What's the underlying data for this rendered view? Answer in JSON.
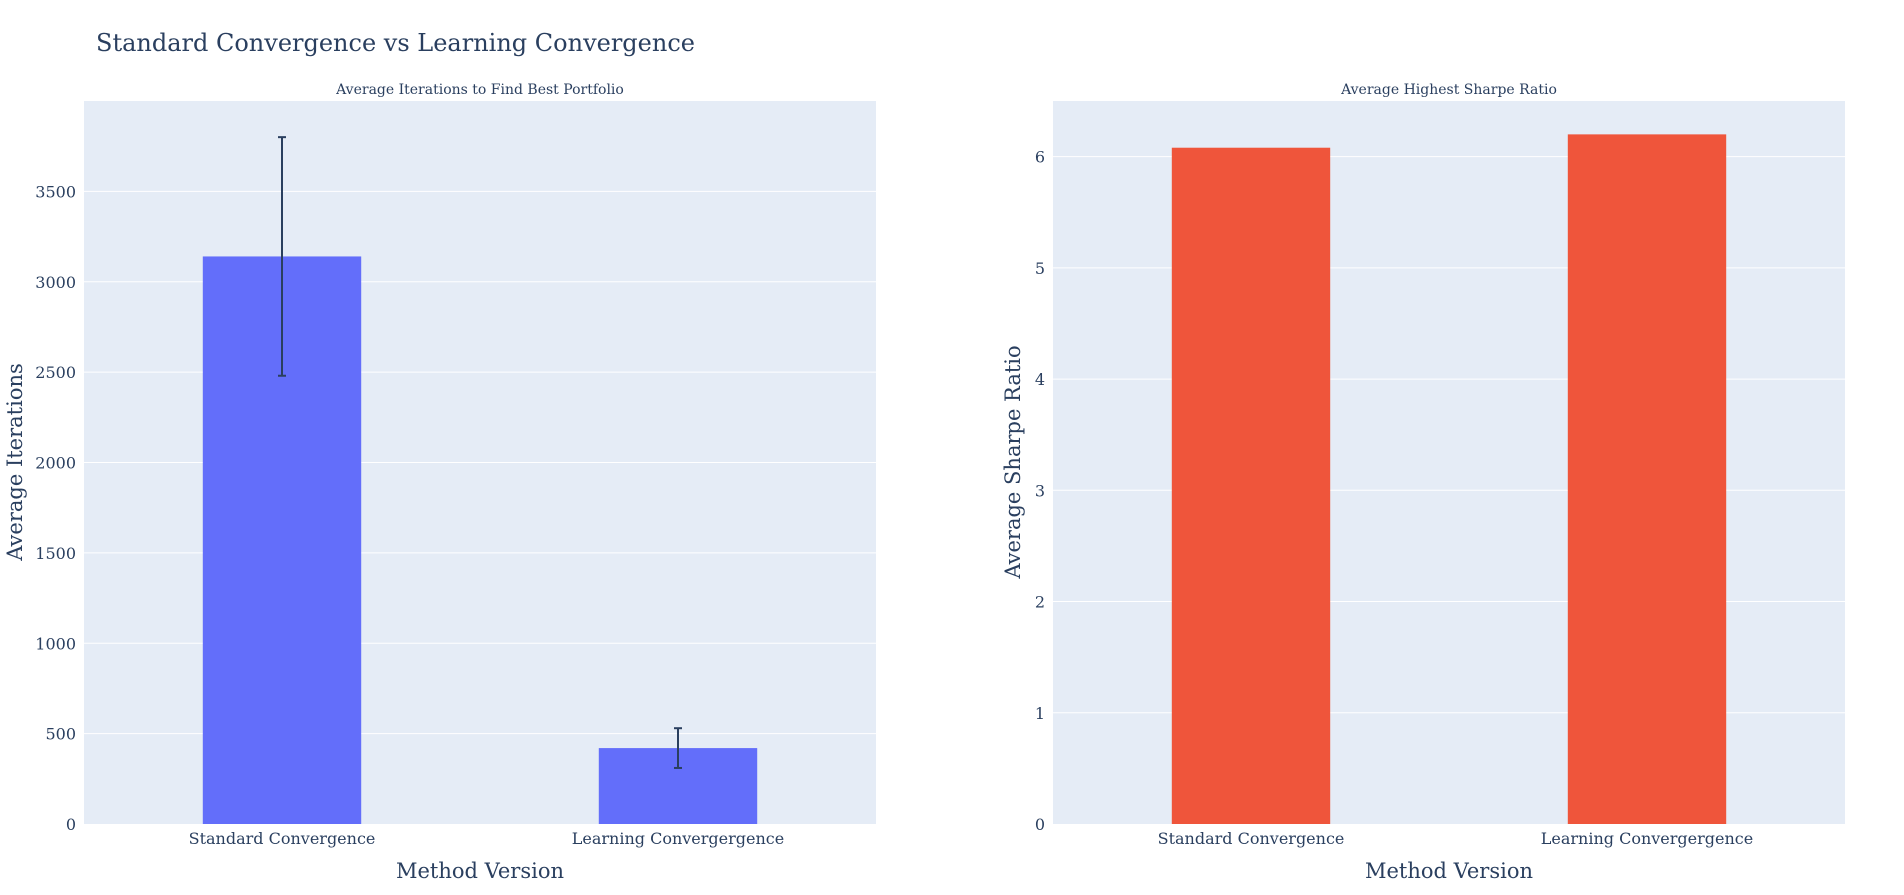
{
  "figure": {
    "title": "Standard Convergence vs Learning Convergence"
  },
  "chart_data": [
    {
      "type": "bar",
      "title": "Average Iterations to Find Best Portfolio",
      "xlabel": "Method Version",
      "ylabel": "Average Iterations",
      "categories": [
        "Standard Convergence",
        "Learning Convergergence"
      ],
      "values": [
        3140,
        420
      ],
      "error": [
        660,
        110
      ],
      "color": "#636efa",
      "ylim": [
        0,
        4000
      ],
      "yticks": [
        0,
        500,
        1000,
        1500,
        2000,
        2500,
        3000,
        3500
      ],
      "grid": true
    },
    {
      "type": "bar",
      "title": "Average Highest Sharpe Ratio",
      "xlabel": "Method Version",
      "ylabel": "Average Sharpe Ratio",
      "categories": [
        "Standard Convergence",
        "Learning Convergergence"
      ],
      "values": [
        6.08,
        6.2
      ],
      "color": "#ef553b",
      "ylim": [
        0,
        6.5
      ],
      "yticks": [
        0,
        1,
        2,
        3,
        4,
        5,
        6
      ],
      "grid": true
    }
  ]
}
